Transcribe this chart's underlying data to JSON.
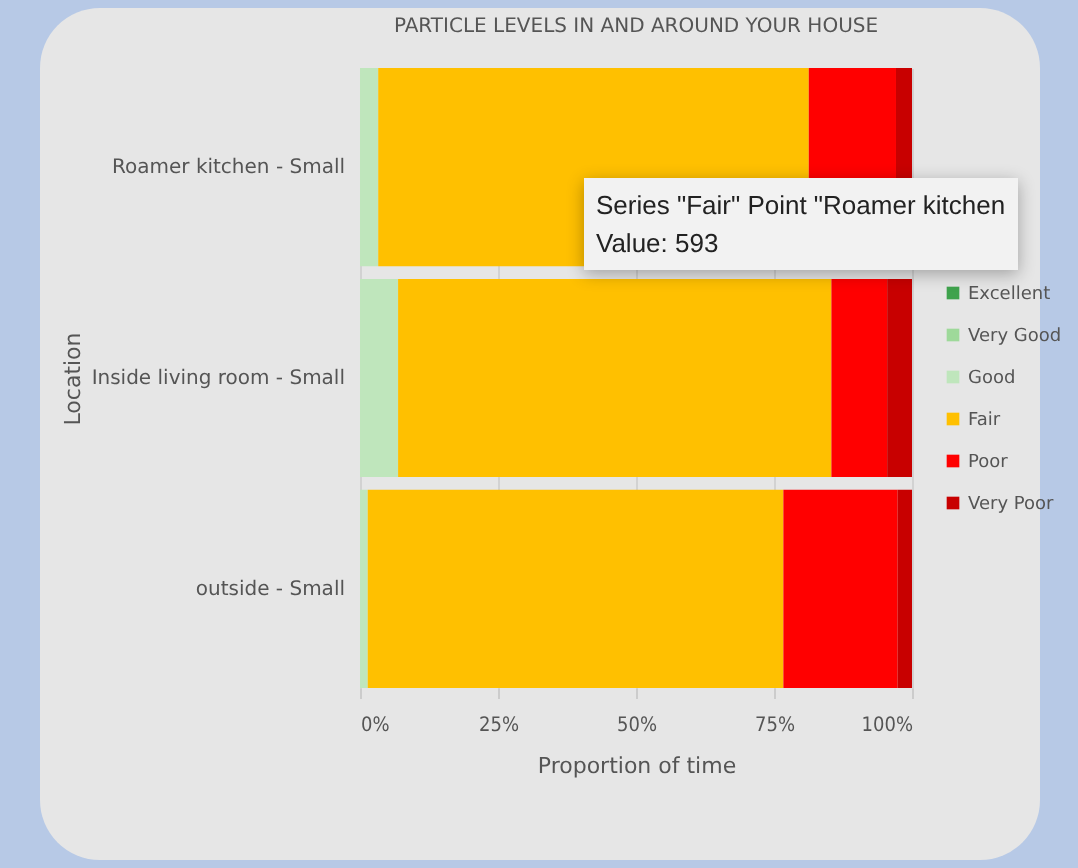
{
  "chart_data": {
    "type": "bar",
    "orientation": "horizontal",
    "stacked": true,
    "title": "PARTICLE LEVELS IN AND AROUND YOUR HOUSE",
    "xlabel": "Proportion of time",
    "ylabel": "Location",
    "categories": [
      "Roamer kitchen - Small",
      "Inside living room - Small",
      "outside - Small"
    ],
    "series": [
      {
        "name": "Excellent",
        "color": "#3fa34d",
        "values": [
          0,
          0,
          0
        ]
      },
      {
        "name": "Very Good",
        "color": "#9ed99a",
        "values": [
          0,
          0,
          0
        ]
      },
      {
        "name": "Good",
        "color": "#bfe6bc",
        "values": [
          3.3,
          6.9,
          1.4
        ]
      },
      {
        "name": "Fair",
        "color": "#ffc000",
        "values": [
          78,
          78.5,
          75.3
        ]
      },
      {
        "name": "Poor",
        "color": "#ff0000",
        "values": [
          15.8,
          10.1,
          20.7
        ]
      },
      {
        "name": "Very Poor",
        "color": "#c80000",
        "values": [
          2.9,
          4.5,
          2.6
        ]
      }
    ],
    "xlim": [
      0,
      100
    ],
    "xticks": [
      {
        "value": 0,
        "label": "0%"
      },
      {
        "value": 25,
        "label": "25%"
      },
      {
        "value": 50,
        "label": "50%"
      },
      {
        "value": 75,
        "label": "75%"
      },
      {
        "value": 100,
        "label": "100%"
      }
    ],
    "grid": "x",
    "legend": "right",
    "annotations": [
      "Series \"Fair\" Point \"Roamer kitchen",
      "Value: 593"
    ]
  }
}
